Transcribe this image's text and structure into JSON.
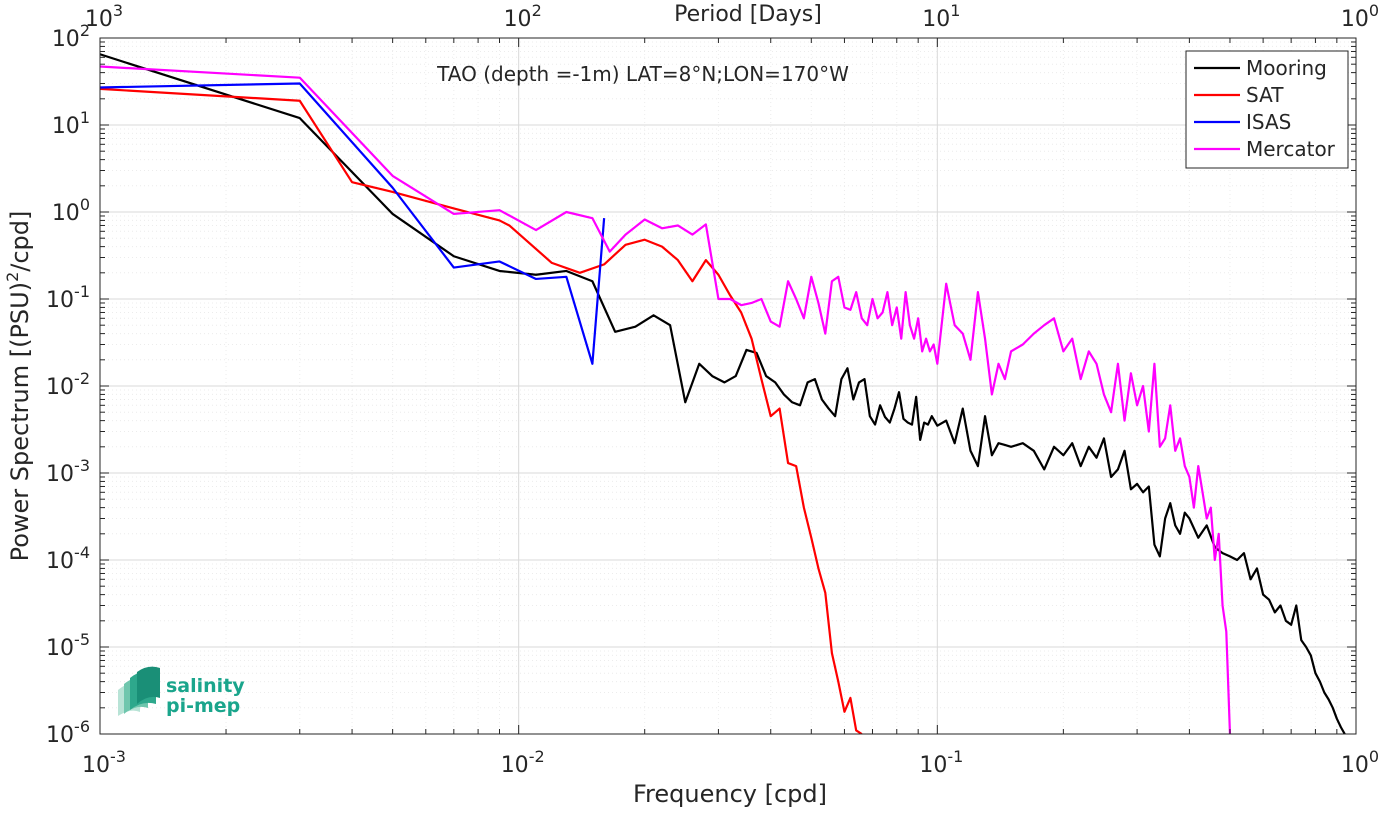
{
  "chart_data": {
    "type": "line",
    "title": "TAO (depth =-1m) LAT=8°N;LON=170°W",
    "xlabel": "Frequency [cpd]",
    "ylabel_main": "Power Spectrum [(PSU)",
    "ylabel_sup": "2",
    "ylabel_tail": "/cpd]",
    "x2label": "Period [Days]",
    "xscale": "log",
    "yscale": "log",
    "xlim": [
      0.001,
      1
    ],
    "ylim": [
      1e-06,
      100
    ],
    "grid": true,
    "legend_position": "top-right",
    "x_ticks": [
      {
        "value": 0.001,
        "base": "10",
        "exp": "-3"
      },
      {
        "value": 0.01,
        "base": "10",
        "exp": "-2"
      },
      {
        "value": 0.1,
        "base": "10",
        "exp": "-1"
      },
      {
        "value": 1,
        "base": "10",
        "exp": "0"
      }
    ],
    "y_ticks": [
      {
        "value": 1e-06,
        "base": "10",
        "exp": "-6"
      },
      {
        "value": 1e-05,
        "base": "10",
        "exp": "-5"
      },
      {
        "value": 0.0001,
        "base": "10",
        "exp": "-4"
      },
      {
        "value": 0.001,
        "base": "10",
        "exp": "-3"
      },
      {
        "value": 0.01,
        "base": "10",
        "exp": "-2"
      },
      {
        "value": 0.1,
        "base": "10",
        "exp": "-1"
      },
      {
        "value": 1,
        "base": "10",
        "exp": "0"
      },
      {
        "value": 10,
        "base": "10",
        "exp": "1"
      },
      {
        "value": 100,
        "base": "10",
        "exp": "2"
      }
    ],
    "x2_ticks": [
      {
        "value": 1000,
        "base": "10",
        "exp": "3"
      },
      {
        "value": 100,
        "base": "10",
        "exp": "2"
      },
      {
        "value": 10,
        "base": "10",
        "exp": "1"
      },
      {
        "value": 1,
        "base": "10",
        "exp": "0"
      }
    ],
    "series": [
      {
        "name": "Mooring",
        "color": "#000000",
        "x": [
          0.001,
          0.003,
          0.005,
          0.007,
          0.009,
          0.011,
          0.013,
          0.015,
          0.017,
          0.019,
          0.021,
          0.023,
          0.025,
          0.027,
          0.029,
          0.031,
          0.033,
          0.035,
          0.037,
          0.039,
          0.041,
          0.043,
          0.045,
          0.047,
          0.049,
          0.051,
          0.053,
          0.055,
          0.057,
          0.059,
          0.061,
          0.063,
          0.065,
          0.067,
          0.069,
          0.071,
          0.073,
          0.075,
          0.077,
          0.079,
          0.081,
          0.083,
          0.085,
          0.087,
          0.089,
          0.091,
          0.093,
          0.095,
          0.097,
          0.1,
          0.105,
          0.11,
          0.115,
          0.12,
          0.125,
          0.13,
          0.135,
          0.14,
          0.145,
          0.15,
          0.16,
          0.17,
          0.18,
          0.19,
          0.2,
          0.21,
          0.22,
          0.23,
          0.24,
          0.25,
          0.26,
          0.27,
          0.28,
          0.29,
          0.3,
          0.31,
          0.32,
          0.33,
          0.34,
          0.35,
          0.36,
          0.37,
          0.38,
          0.39,
          0.4,
          0.42,
          0.44,
          0.46,
          0.48,
          0.5,
          0.52,
          0.54,
          0.56,
          0.58,
          0.6,
          0.62,
          0.64,
          0.66,
          0.68,
          0.7,
          0.72,
          0.74,
          0.76,
          0.78,
          0.8,
          0.82,
          0.84,
          0.86,
          0.88,
          0.9,
          0.92,
          0.94
        ],
        "y": [
          65,
          12,
          0.95,
          0.31,
          0.21,
          0.19,
          0.21,
          0.16,
          0.042,
          0.048,
          0.065,
          0.05,
          0.0065,
          0.018,
          0.013,
          0.011,
          0.013,
          0.026,
          0.024,
          0.013,
          0.011,
          0.008,
          0.0065,
          0.006,
          0.011,
          0.012,
          0.007,
          0.0055,
          0.0045,
          0.012,
          0.016,
          0.007,
          0.011,
          0.012,
          0.0045,
          0.0036,
          0.006,
          0.0044,
          0.0038,
          0.0055,
          0.0085,
          0.0042,
          0.0038,
          0.0036,
          0.0075,
          0.0024,
          0.0038,
          0.0036,
          0.0045,
          0.0035,
          0.004,
          0.0022,
          0.0055,
          0.0018,
          0.0012,
          0.0045,
          0.0016,
          0.0022,
          0.0021,
          0.002,
          0.0022,
          0.0018,
          0.0011,
          0.002,
          0.0016,
          0.0022,
          0.0012,
          0.002,
          0.0015,
          0.0025,
          0.0009,
          0.0011,
          0.0018,
          0.00065,
          0.00075,
          0.0006,
          0.0007,
          0.00015,
          0.00011,
          0.0003,
          0.00045,
          0.00025,
          0.0002,
          0.00035,
          0.0003,
          0.00018,
          0.00025,
          0.00014,
          0.00012,
          0.00011,
          0.0001,
          0.00012,
          6e-05,
          8e-05,
          4e-05,
          3.5e-05,
          2.5e-05,
          3e-05,
          2e-05,
          1.8e-05,
          3e-05,
          1.2e-05,
          1e-05,
          8e-06,
          5e-06,
          4e-06,
          3e-06,
          2.5e-06,
          2e-06,
          1.5e-06,
          1.2e-06,
          1e-06
        ]
      },
      {
        "name": "SAT",
        "color": "#ff0000",
        "x": [
          0.001,
          0.003,
          0.004,
          0.005,
          0.007,
          0.009,
          0.0095,
          0.012,
          0.014,
          0.016,
          0.018,
          0.02,
          0.022,
          0.024,
          0.026,
          0.028,
          0.03,
          0.032,
          0.034,
          0.036,
          0.038,
          0.04,
          0.042,
          0.044,
          0.046,
          0.048,
          0.05,
          0.052,
          0.054,
          0.056,
          0.058,
          0.06,
          0.062,
          0.064,
          0.066
        ],
        "y": [
          26,
          19,
          2.2,
          1.7,
          1.1,
          0.8,
          0.7,
          0.26,
          0.2,
          0.25,
          0.42,
          0.48,
          0.4,
          0.28,
          0.16,
          0.28,
          0.19,
          0.11,
          0.07,
          0.035,
          0.012,
          0.0045,
          0.0055,
          0.0013,
          0.0012,
          0.0004,
          0.00018,
          8e-05,
          4.2e-05,
          8.5e-06,
          4e-06,
          1.8e-06,
          2.6e-06,
          1.1e-06,
          1e-06
        ]
      },
      {
        "name": "ISAS",
        "color": "#0000ff",
        "x": [
          0.001,
          0.003,
          0.005,
          0.007,
          0.009,
          0.011,
          0.013,
          0.015,
          0.016
        ],
        "y": [
          27,
          30,
          1.9,
          0.23,
          0.27,
          0.17,
          0.18,
          0.018,
          0.85
        ]
      },
      {
        "name": "Mercator",
        "color": "#ff00ff",
        "x": [
          0.001,
          0.003,
          0.005,
          0.007,
          0.009,
          0.011,
          0.013,
          0.015,
          0.0165,
          0.018,
          0.02,
          0.022,
          0.024,
          0.026,
          0.028,
          0.03,
          0.032,
          0.034,
          0.036,
          0.038,
          0.04,
          0.042,
          0.044,
          0.046,
          0.048,
          0.05,
          0.052,
          0.054,
          0.056,
          0.058,
          0.06,
          0.062,
          0.064,
          0.066,
          0.068,
          0.07,
          0.072,
          0.074,
          0.076,
          0.078,
          0.08,
          0.082,
          0.084,
          0.086,
          0.088,
          0.09,
          0.092,
          0.094,
          0.096,
          0.098,
          0.1,
          0.105,
          0.11,
          0.115,
          0.12,
          0.125,
          0.13,
          0.135,
          0.14,
          0.145,
          0.15,
          0.16,
          0.17,
          0.18,
          0.19,
          0.2,
          0.21,
          0.22,
          0.23,
          0.24,
          0.25,
          0.26,
          0.27,
          0.28,
          0.29,
          0.3,
          0.31,
          0.32,
          0.33,
          0.34,
          0.35,
          0.36,
          0.37,
          0.38,
          0.39,
          0.4,
          0.41,
          0.42,
          0.43,
          0.44,
          0.45,
          0.46,
          0.47,
          0.48,
          0.49,
          0.5
        ],
        "y": [
          47,
          35,
          2.6,
          0.95,
          1.05,
          0.62,
          1.0,
          0.85,
          0.35,
          0.55,
          0.82,
          0.65,
          0.7,
          0.55,
          0.72,
          0.1,
          0.1,
          0.085,
          0.09,
          0.1,
          0.055,
          0.048,
          0.16,
          0.1,
          0.06,
          0.18,
          0.09,
          0.04,
          0.16,
          0.18,
          0.08,
          0.075,
          0.12,
          0.06,
          0.05,
          0.1,
          0.06,
          0.07,
          0.12,
          0.05,
          0.08,
          0.035,
          0.12,
          0.05,
          0.035,
          0.06,
          0.025,
          0.035,
          0.025,
          0.03,
          0.018,
          0.15,
          0.05,
          0.04,
          0.02,
          0.12,
          0.035,
          0.008,
          0.018,
          0.012,
          0.025,
          0.03,
          0.04,
          0.05,
          0.06,
          0.025,
          0.035,
          0.012,
          0.025,
          0.018,
          0.008,
          0.005,
          0.018,
          0.004,
          0.014,
          0.006,
          0.01,
          0.003,
          0.018,
          0.002,
          0.0025,
          0.006,
          0.0018,
          0.0025,
          0.0012,
          0.0009,
          0.0004,
          0.0012,
          0.0006,
          0.0003,
          0.0004,
          0.0001,
          0.0002,
          3e-05,
          1.5e-05,
          1e-06
        ]
      }
    ]
  },
  "logo": {
    "line1": "salinity",
    "line2": "pi-mep",
    "color": "#1aa58c"
  }
}
